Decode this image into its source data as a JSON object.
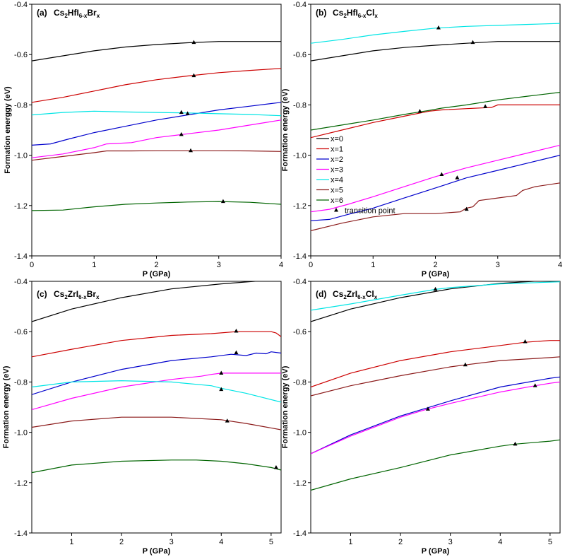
{
  "chart_data": [
    {
      "type": "line",
      "panel_label": "(a)",
      "title_main": "Cs",
      "title_parts": [
        [
          "Cs",
          ""
        ],
        [
          "2",
          "sub"
        ],
        [
          "HfI",
          ""
        ],
        [
          "6-x",
          "sub"
        ],
        [
          "Br",
          ""
        ],
        [
          "x",
          "sub"
        ]
      ],
      "xlabel": "P (GPa)",
      "ylabel": "Formation energgy (eV)",
      "xlim": [
        0,
        4
      ],
      "ylim": [
        -1.4,
        -0.4
      ],
      "xticks": [
        0,
        1,
        2,
        3,
        4
      ],
      "xtick_labels": [
        "0",
        "1",
        "2",
        "3",
        "4"
      ],
      "yticks": [
        -1.4,
        -1.2,
        -1.0,
        -0.8,
        -0.6,
        -0.4
      ],
      "ytick_labels": [
        "-1.4",
        "-1.2",
        "-1.0",
        "-0.8",
        "-0.6",
        "-0.4"
      ],
      "series": [
        {
          "name": "x=0",
          "color": "#000000",
          "x": [
            0,
            0.5,
            1,
            1.5,
            2,
            2.5,
            3,
            3.5,
            4
          ],
          "y": [
            -0.625,
            -0.605,
            -0.585,
            -0.57,
            -0.56,
            -0.553,
            -0.548,
            -0.548,
            -0.548
          ]
        },
        {
          "name": "x=1",
          "color": "#cc0000",
          "x": [
            0,
            0.5,
            1,
            1.5,
            2,
            2.5,
            3,
            3.5,
            4
          ],
          "y": [
            -0.79,
            -0.77,
            -0.745,
            -0.72,
            -0.7,
            -0.685,
            -0.672,
            -0.663,
            -0.655
          ]
        },
        {
          "name": "x=2",
          "color": "#0000cc",
          "x": [
            0,
            0.3,
            0.6,
            1,
            1.5,
            2,
            2.5,
            3,
            3.5,
            4
          ],
          "y": [
            -0.96,
            -0.955,
            -0.935,
            -0.91,
            -0.885,
            -0.86,
            -0.84,
            -0.82,
            -0.805,
            -0.79
          ]
        },
        {
          "name": "x=3",
          "color": "#ff00ff",
          "x": [
            0,
            0.5,
            1,
            1.2,
            1.6,
            2,
            2.5,
            3,
            3.5,
            4
          ],
          "y": [
            -1.01,
            -0.995,
            -0.97,
            -0.955,
            -0.95,
            -0.93,
            -0.915,
            -0.9,
            -0.88,
            -0.86
          ]
        },
        {
          "name": "x=4",
          "color": "#00e5e5",
          "x": [
            0,
            0.5,
            1,
            1.5,
            2,
            2.5,
            3,
            3.5,
            4
          ],
          "y": [
            -0.84,
            -0.83,
            -0.825,
            -0.828,
            -0.83,
            -0.832,
            -0.835,
            -0.838,
            -0.843
          ]
        },
        {
          "name": "x=5",
          "color": "#8b1a1a",
          "x": [
            0,
            0.5,
            1,
            1.2,
            1.6,
            2,
            2.5,
            3,
            3.5,
            4
          ],
          "y": [
            -1.02,
            -1.005,
            -0.99,
            -0.983,
            -0.983,
            -0.982,
            -0.982,
            -0.982,
            -0.983,
            -0.985
          ]
        },
        {
          "name": "x=6",
          "color": "#006400",
          "x": [
            0,
            0.5,
            1,
            1.5,
            2,
            2.5,
            3,
            3.5,
            4
          ],
          "y": [
            -1.22,
            -1.218,
            -1.205,
            -1.195,
            -1.19,
            -1.186,
            -1.184,
            -1.187,
            -1.195
          ]
        }
      ],
      "transition_points": [
        {
          "x": 2.6,
          "y": -0.552
        },
        {
          "x": 2.6,
          "y": -0.684
        },
        {
          "x": 2.4,
          "y": -0.83
        },
        {
          "x": 2.5,
          "y": -0.835
        },
        {
          "x": 2.4,
          "y": -0.918
        },
        {
          "x": 2.55,
          "y": -0.982
        },
        {
          "x": 3.07,
          "y": -1.184
        }
      ]
    },
    {
      "type": "line",
      "panel_label": "(b)",
      "title_parts": [
        [
          "Cs",
          ""
        ],
        [
          "2",
          "sub"
        ],
        [
          "HfI",
          ""
        ],
        [
          "6-x",
          "sub"
        ],
        [
          "Cl",
          ""
        ],
        [
          "x",
          "sub"
        ]
      ],
      "xlabel": "P (GPa)",
      "ylabel": "Formation energy (eV)",
      "xlim": [
        0,
        4
      ],
      "ylim": [
        -1.4,
        -0.4
      ],
      "xticks": [
        0,
        1,
        2,
        3,
        4
      ],
      "xtick_labels": [
        "0",
        "1",
        "2",
        "3",
        "4"
      ],
      "yticks": [
        -1.4,
        -1.2,
        -1.0,
        -0.8,
        -0.6,
        -0.4
      ],
      "ytick_labels": [
        "-1.4",
        "-1.2",
        "-1.0",
        "-0.8",
        "-0.6",
        "-0.4"
      ],
      "legend": {
        "entries": [
          "x=0",
          "x=1",
          "x=2",
          "x=3",
          "x=4",
          "x=5",
          "x=6",
          "transition point"
        ]
      },
      "series": [
        {
          "name": "x=0",
          "color": "#000000",
          "x": [
            0,
            0.5,
            1,
            1.5,
            2,
            2.5,
            3,
            3.5,
            4
          ],
          "y": [
            -0.625,
            -0.605,
            -0.585,
            -0.572,
            -0.563,
            -0.555,
            -0.548,
            -0.548,
            -0.548
          ]
        },
        {
          "name": "x=1",
          "color": "#cc0000",
          "x": [
            0,
            0.5,
            1,
            1.5,
            1.9,
            2.1,
            2.5,
            2.9,
            3.0,
            3.5,
            4
          ],
          "y": [
            -0.93,
            -0.9,
            -0.87,
            -0.845,
            -0.825,
            -0.82,
            -0.815,
            -0.81,
            -0.8,
            -0.8,
            -0.8
          ]
        },
        {
          "name": "x=2",
          "color": "#0000cc",
          "x": [
            0,
            0.3,
            0.6,
            1,
            1.5,
            2,
            2.5,
            3,
            3.5,
            4
          ],
          "y": [
            -1.26,
            -1.255,
            -1.235,
            -1.21,
            -1.17,
            -1.13,
            -1.09,
            -1.06,
            -1.03,
            -1.0
          ]
        },
        {
          "name": "x=3",
          "color": "#ff00ff",
          "x": [
            0,
            0.3,
            0.6,
            1,
            1.5,
            2,
            2.5,
            3,
            3.5,
            4
          ],
          "y": [
            -1.225,
            -1.215,
            -1.195,
            -1.165,
            -1.125,
            -1.085,
            -1.05,
            -1.02,
            -0.99,
            -0.96
          ]
        },
        {
          "name": "x=4",
          "color": "#00e5e5",
          "x": [
            0,
            0.5,
            1,
            1.5,
            2,
            2.5,
            3,
            3.5,
            4
          ],
          "y": [
            -0.555,
            -0.54,
            -0.522,
            -0.508,
            -0.495,
            -0.488,
            -0.484,
            -0.48,
            -0.476
          ]
        },
        {
          "name": "x=5",
          "color": "#8b1a1a",
          "x": [
            0,
            0.5,
            1,
            1.5,
            2,
            2.4,
            2.5,
            2.6,
            2.7,
            3.0,
            3.3,
            3.4,
            3.6,
            4
          ],
          "y": [
            -1.3,
            -1.27,
            -1.245,
            -1.232,
            -1.232,
            -1.225,
            -1.21,
            -1.205,
            -1.18,
            -1.17,
            -1.16,
            -1.14,
            -1.125,
            -1.11
          ]
        },
        {
          "name": "x=6",
          "color": "#006400",
          "x": [
            0,
            0.5,
            1,
            1.5,
            1.9,
            2.1,
            2.5,
            3,
            3.5,
            4
          ],
          "y": [
            -0.9,
            -0.88,
            -0.86,
            -0.838,
            -0.822,
            -0.813,
            -0.8,
            -0.78,
            -0.765,
            -0.75
          ]
        }
      ],
      "transition_points": [
        {
          "x": 2.05,
          "y": -0.494
        },
        {
          "x": 2.6,
          "y": -0.552
        },
        {
          "x": 1.75,
          "y": -0.826
        },
        {
          "x": 2.8,
          "y": -0.807
        },
        {
          "x": 2.1,
          "y": -1.077
        },
        {
          "x": 2.35,
          "y": -1.09
        },
        {
          "x": 2.5,
          "y": -1.215
        }
      ]
    },
    {
      "type": "line",
      "panel_label": "(c)",
      "title_parts": [
        [
          "Cs",
          ""
        ],
        [
          "2",
          "sub"
        ],
        [
          "ZrI",
          ""
        ],
        [
          "6-x",
          "sub"
        ],
        [
          "Br",
          ""
        ],
        [
          "x",
          "sub"
        ]
      ],
      "xlabel": "P (GPa)",
      "ylabel": "Formation energy (eV)",
      "xlim": [
        0.2,
        5.2
      ],
      "ylim": [
        -1.4,
        -0.4
      ],
      "xticks": [
        1,
        2,
        3,
        4,
        5
      ],
      "xtick_labels": [
        "1",
        "2",
        "3",
        "4",
        "5"
      ],
      "yticks": [
        -1.4,
        -1.2,
        -1.0,
        -0.8,
        -0.6,
        -0.4
      ],
      "ytick_labels": [
        "-1.4",
        "-1.2",
        "-1.0",
        "-0.8",
        "-0.6",
        "-0.4"
      ],
      "series": [
        {
          "name": "x=0",
          "color": "#000000",
          "x": [
            0.2,
            1,
            2,
            3,
            4,
            5,
            5.2
          ],
          "y": [
            -0.56,
            -0.51,
            -0.465,
            -0.43,
            -0.41,
            -0.395,
            -0.393
          ]
        },
        {
          "name": "x=1",
          "color": "#cc0000",
          "x": [
            0.2,
            1,
            2,
            3,
            3.8,
            4.3,
            5,
            5.1,
            5.2
          ],
          "y": [
            -0.7,
            -0.67,
            -0.635,
            -0.615,
            -0.608,
            -0.6,
            -0.6,
            -0.605,
            -0.62
          ]
        },
        {
          "name": "x=2",
          "color": "#0000cc",
          "x": [
            0.2,
            1,
            2,
            3,
            3.8,
            4.2,
            4.5,
            4.7,
            4.9,
            5.0,
            5.2
          ],
          "y": [
            -0.85,
            -0.8,
            -0.75,
            -0.715,
            -0.7,
            -0.69,
            -0.695,
            -0.685,
            -0.688,
            -0.68,
            -0.685
          ]
        },
        {
          "name": "x=3",
          "color": "#ff00ff",
          "x": [
            0.2,
            1,
            2,
            3,
            3.6,
            3.8,
            4.0,
            5.2
          ],
          "y": [
            -0.91,
            -0.865,
            -0.82,
            -0.79,
            -0.777,
            -0.77,
            -0.765,
            -0.765
          ]
        },
        {
          "name": "x=4",
          "color": "#00e5e5",
          "x": [
            0.2,
            1,
            2,
            3,
            3.8,
            4.0,
            4.5,
            5.2
          ],
          "y": [
            -0.82,
            -0.8,
            -0.795,
            -0.8,
            -0.815,
            -0.825,
            -0.845,
            -0.88
          ]
        },
        {
          "name": "x=5",
          "color": "#8b1a1a",
          "x": [
            0.2,
            1,
            2,
            3,
            4,
            4.5,
            5.2
          ],
          "y": [
            -0.98,
            -0.955,
            -0.94,
            -0.94,
            -0.95,
            -0.965,
            -0.99
          ]
        },
        {
          "name": "x=6",
          "color": "#006400",
          "x": [
            0.2,
            1,
            2,
            3,
            3.5,
            4,
            4.5,
            5.0,
            5.2
          ],
          "y": [
            -1.16,
            -1.13,
            -1.115,
            -1.11,
            -1.11,
            -1.115,
            -1.125,
            -1.14,
            -1.15
          ]
        }
      ],
      "transition_points": [
        {
          "x": 4.3,
          "y": -0.598
        },
        {
          "x": 4.3,
          "y": -0.684
        },
        {
          "x": 4.0,
          "y": -0.765
        },
        {
          "x": 4.0,
          "y": -0.83
        },
        {
          "x": 4.12,
          "y": -0.955
        },
        {
          "x": 5.1,
          "y": -1.14
        }
      ]
    },
    {
      "type": "line",
      "panel_label": "(d)",
      "title_parts": [
        [
          "Cs",
          ""
        ],
        [
          "2",
          "sub"
        ],
        [
          "ZrI",
          ""
        ],
        [
          "6-x",
          "sub"
        ],
        [
          "Cl",
          ""
        ],
        [
          "x",
          "sub"
        ]
      ],
      "xlabel": "P (GPa)",
      "ylabel": "Formation energy (eV)",
      "xlim": [
        0.2,
        5.2
      ],
      "ylim": [
        -1.4,
        -0.4
      ],
      "xticks": [
        1,
        2,
        3,
        4,
        5
      ],
      "xtick_labels": [
        "1",
        "2",
        "3",
        "4",
        "5"
      ],
      "yticks": [
        -1.4,
        -1.2,
        -1.0,
        -0.8,
        -0.6,
        -0.4
      ],
      "ytick_labels": [
        "-1.4",
        "-1.2",
        "-1.0",
        "-0.8",
        "-0.6",
        "-0.4"
      ],
      "series": [
        {
          "name": "x=0",
          "color": "#000000",
          "x": [
            0.2,
            1,
            2,
            3,
            4,
            5,
            5.2
          ],
          "y": [
            -0.56,
            -0.51,
            -0.465,
            -0.43,
            -0.408,
            -0.396,
            -0.393
          ]
        },
        {
          "name": "x=1",
          "color": "#cc0000",
          "x": [
            0.2,
            1,
            2,
            3,
            4,
            4.5,
            5,
            5.2
          ],
          "y": [
            -0.82,
            -0.765,
            -0.715,
            -0.68,
            -0.655,
            -0.642,
            -0.635,
            -0.635
          ]
        },
        {
          "name": "x=2",
          "color": "#0000cc",
          "x": [
            0.2,
            1,
            2,
            2.5,
            3,
            4,
            5,
            5.2
          ],
          "y": [
            -1.085,
            -1.01,
            -0.935,
            -0.905,
            -0.875,
            -0.82,
            -0.785,
            -0.78
          ]
        },
        {
          "name": "x=3",
          "color": "#ff00ff",
          "x": [
            0.2,
            1,
            2,
            2.5,
            3,
            4,
            4.7,
            5,
            5.2
          ],
          "y": [
            -1.085,
            -1.015,
            -0.94,
            -0.91,
            -0.885,
            -0.84,
            -0.815,
            -0.805,
            -0.8
          ]
        },
        {
          "name": "x=4",
          "color": "#00e5e5",
          "x": [
            0.2,
            1,
            2,
            2.7,
            3,
            4,
            5,
            5.2
          ],
          "y": [
            -0.515,
            -0.49,
            -0.455,
            -0.432,
            -0.425,
            -0.41,
            -0.403,
            -0.402
          ]
        },
        {
          "name": "x=5",
          "color": "#8b1a1a",
          "x": [
            0.2,
            1,
            2,
            3,
            3.3,
            4,
            5,
            5.2
          ],
          "y": [
            -0.855,
            -0.815,
            -0.775,
            -0.74,
            -0.732,
            -0.715,
            -0.703,
            -0.7
          ]
        },
        {
          "name": "x=6",
          "color": "#006400",
          "x": [
            0.2,
            1,
            2,
            3,
            4,
            4.3,
            5,
            5.2
          ],
          "y": [
            -1.23,
            -1.185,
            -1.14,
            -1.09,
            -1.055,
            -1.047,
            -1.035,
            -1.03
          ]
        }
      ],
      "transition_points": [
        {
          "x": 2.7,
          "y": -0.432
        },
        {
          "x": 4.5,
          "y": -0.64
        },
        {
          "x": 3.3,
          "y": -0.732
        },
        {
          "x": 4.7,
          "y": -0.815
        },
        {
          "x": 2.55,
          "y": -0.908
        },
        {
          "x": 4.3,
          "y": -1.047
        }
      ]
    }
  ]
}
